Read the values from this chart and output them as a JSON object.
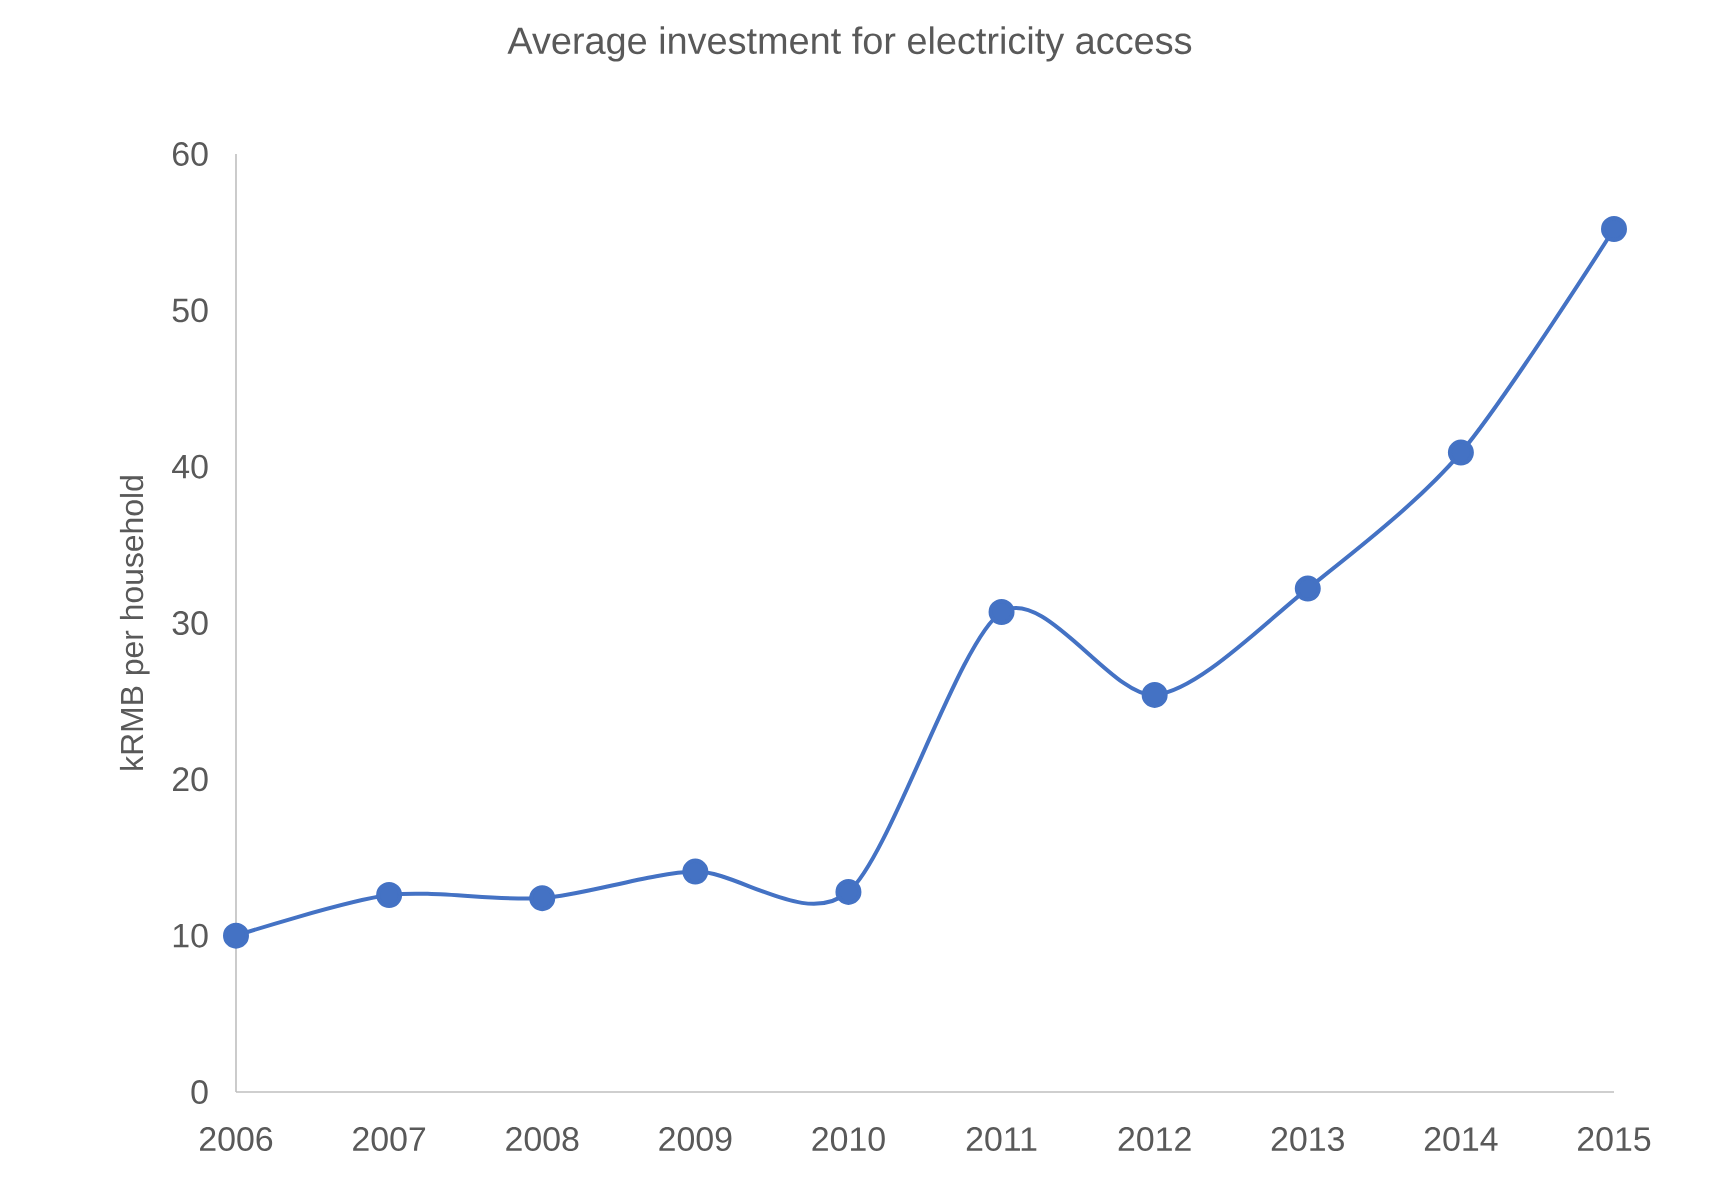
{
  "chart_data": {
    "type": "line",
    "title": "Average investment for electricity access",
    "ylabel": "kRMB per household",
    "categories": [
      "2006",
      "2007",
      "2008",
      "2009",
      "2010",
      "2011",
      "2012",
      "2013",
      "2014",
      "2015"
    ],
    "values": [
      10.0,
      12.6,
      12.4,
      14.1,
      12.8,
      30.7,
      25.4,
      32.2,
      40.9,
      55.2
    ],
    "color": "#4472c4",
    "marker": "circle",
    "line_style": "solid",
    "ylim": [
      0,
      60
    ],
    "yticks": [
      0,
      10,
      20,
      30,
      40,
      50,
      60
    ],
    "grid": false
  }
}
